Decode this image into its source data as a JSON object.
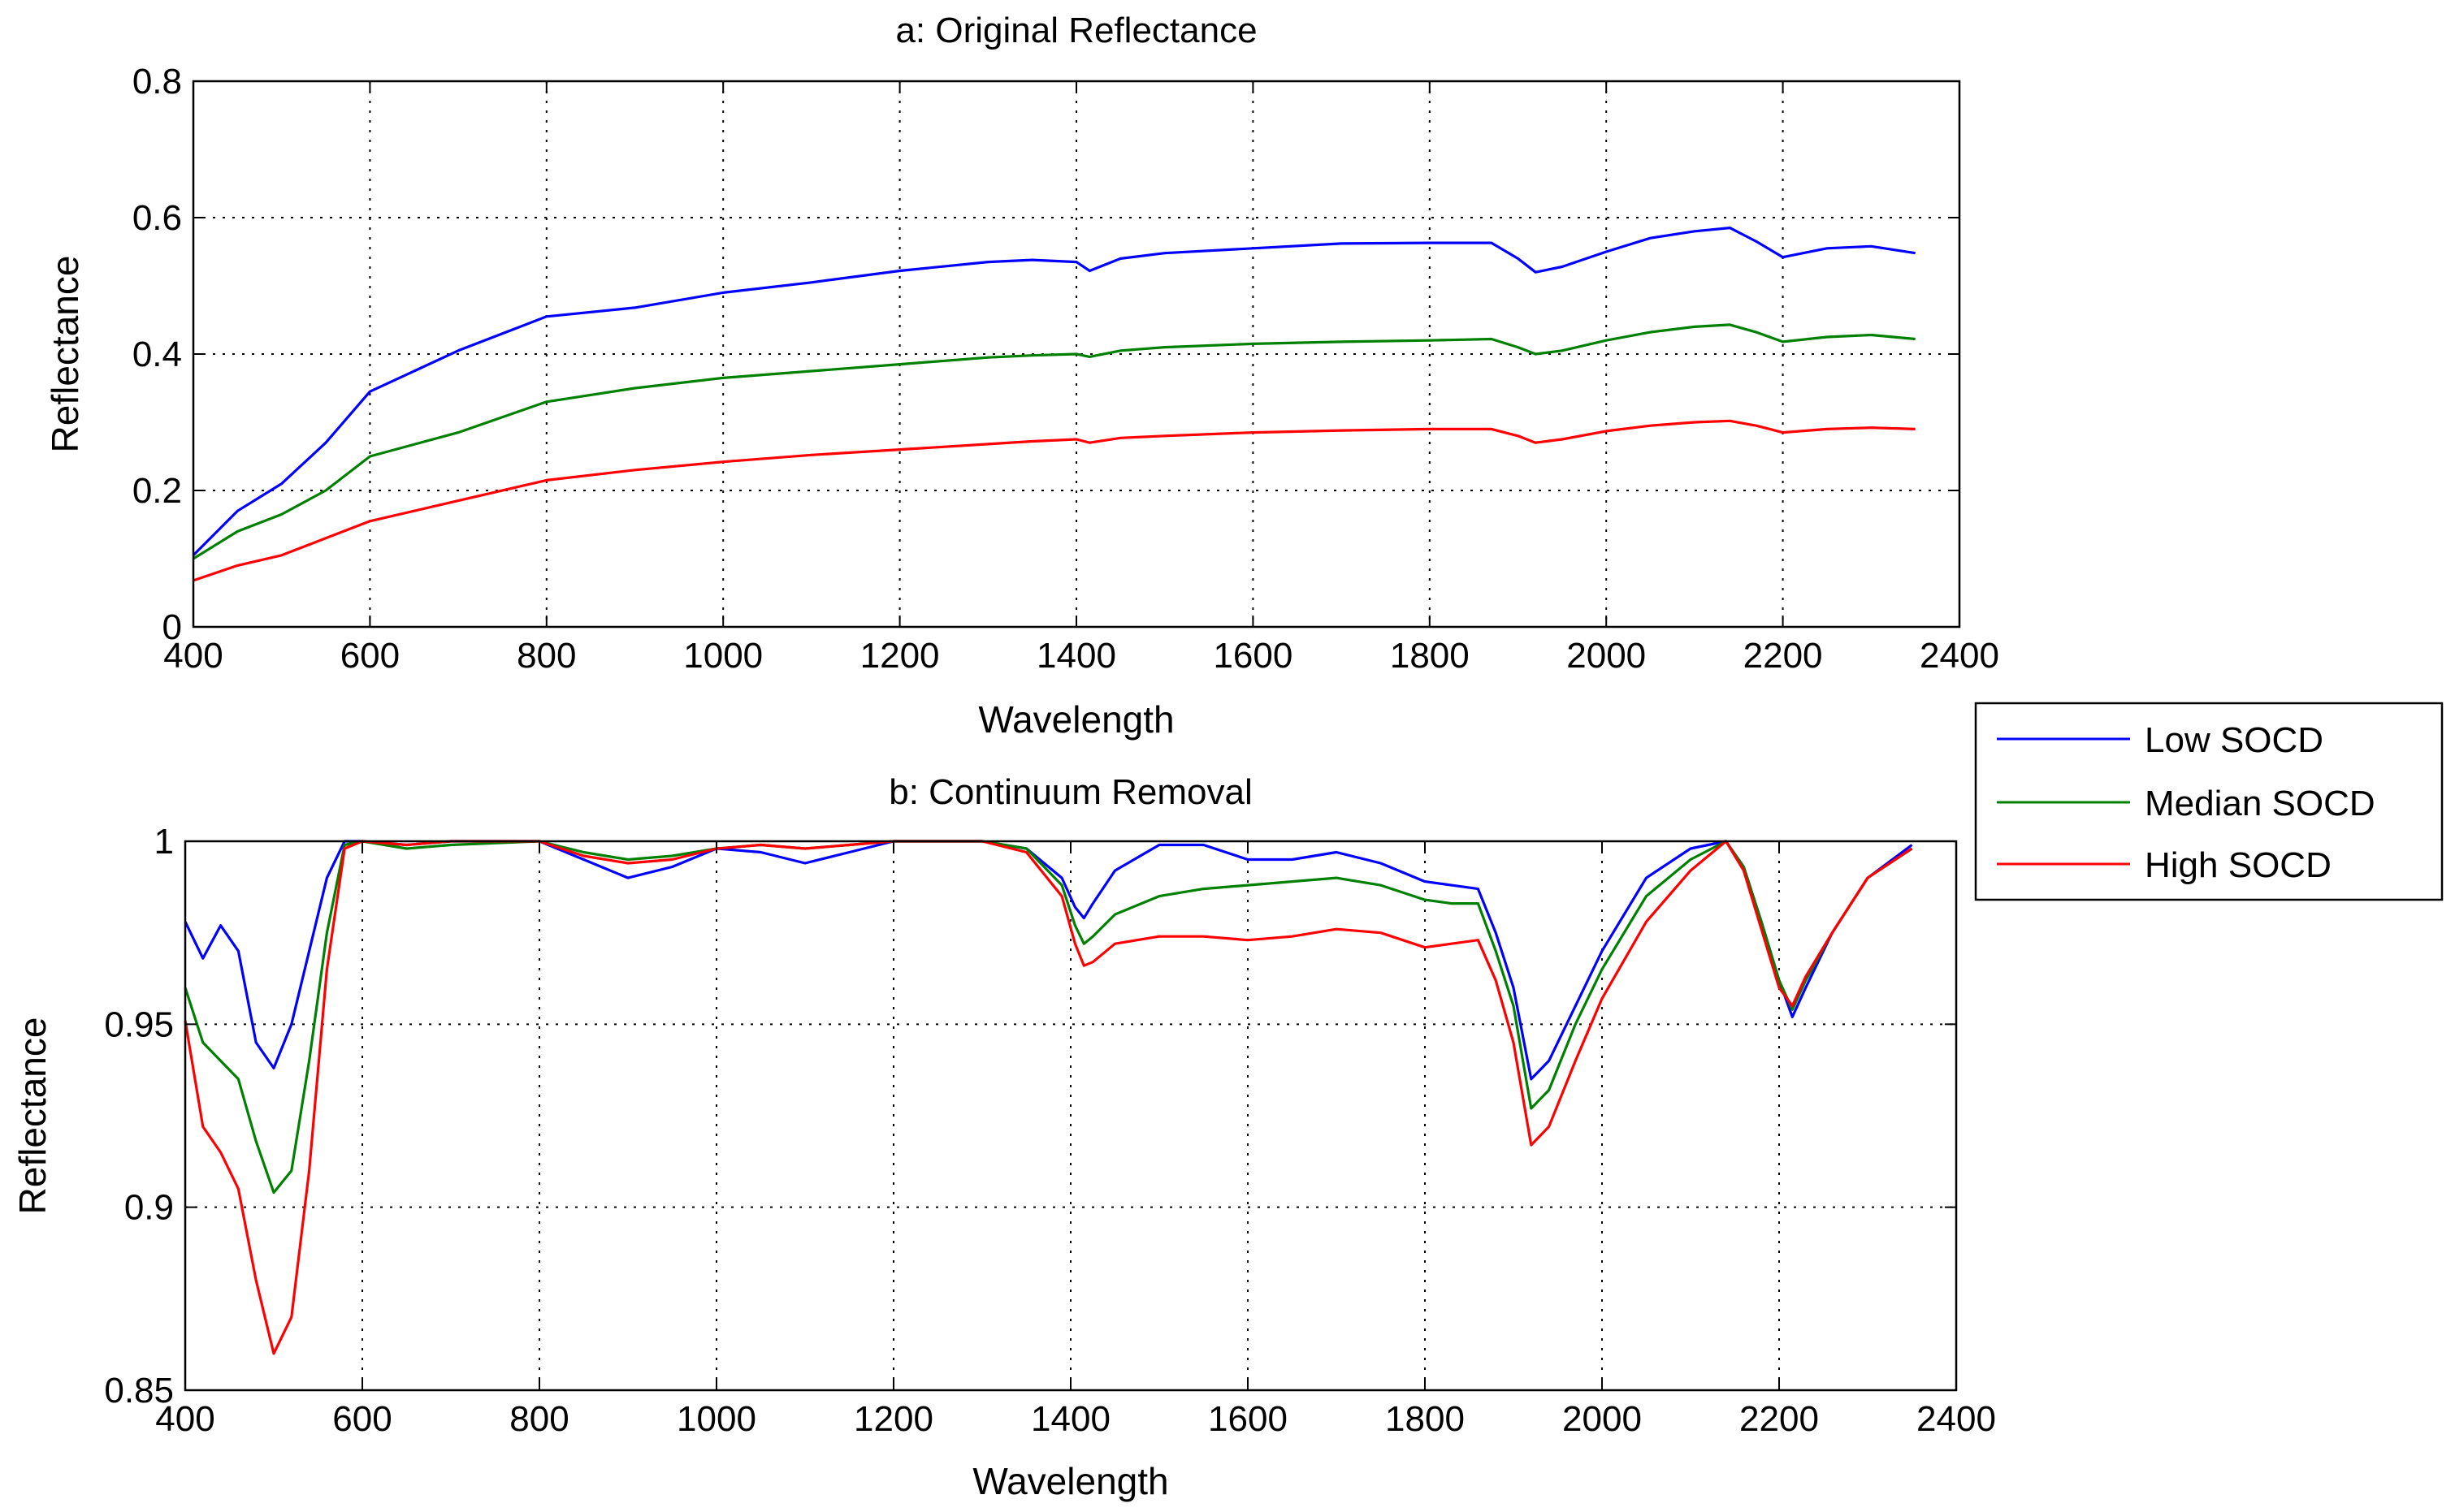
{
  "legend": {
    "entries": [
      {
        "label": "Low SOCD",
        "color": "#0000ff"
      },
      {
        "label": "Median SOCD",
        "color": "#008000"
      },
      {
        "label": "High SOCD",
        "color": "#ff0000"
      }
    ]
  },
  "chart_data": [
    {
      "type": "line",
      "title": "a:  Original Reflectance",
      "xlabel": "Wavelength",
      "ylabel": "Reflectance",
      "xlim": [
        400,
        2400
      ],
      "ylim": [
        0,
        0.8
      ],
      "xticks": [
        400,
        600,
        800,
        1000,
        1200,
        1400,
        1600,
        1800,
        2000,
        2200,
        2400
      ],
      "yticks": [
        0,
        0.2,
        0.4,
        0.6,
        0.8
      ],
      "xtick_labels": [
        "400",
        "600",
        "800",
        "1000",
        "1200",
        "1400",
        "1600",
        "1800",
        "2000",
        "2200",
        "2400"
      ],
      "ytick_labels": [
        "0",
        "0.2",
        "0.4",
        "0.6",
        "0.8"
      ],
      "grid": true,
      "x": [
        400,
        450,
        500,
        550,
        600,
        700,
        800,
        900,
        1000,
        1100,
        1200,
        1300,
        1350,
        1400,
        1415,
        1450,
        1500,
        1600,
        1700,
        1800,
        1870,
        1900,
        1920,
        1950,
        2000,
        2050,
        2100,
        2140,
        2170,
        2200,
        2250,
        2300,
        2350
      ],
      "series": [
        {
          "name": "Low SOCD",
          "color": "#0000ff",
          "values": [
            0.105,
            0.17,
            0.21,
            0.27,
            0.345,
            0.405,
            0.455,
            0.468,
            0.49,
            0.505,
            0.522,
            0.535,
            0.538,
            0.535,
            0.522,
            0.54,
            0.548,
            0.555,
            0.562,
            0.563,
            0.563,
            0.54,
            0.52,
            0.528,
            0.55,
            0.57,
            0.58,
            0.585,
            0.565,
            0.542,
            0.555,
            0.558,
            0.548
          ]
        },
        {
          "name": "Median SOCD",
          "color": "#008000",
          "values": [
            0.1,
            0.14,
            0.165,
            0.2,
            0.25,
            0.285,
            0.33,
            0.35,
            0.365,
            0.375,
            0.385,
            0.395,
            0.398,
            0.4,
            0.396,
            0.405,
            0.41,
            0.415,
            0.418,
            0.42,
            0.422,
            0.41,
            0.4,
            0.405,
            0.42,
            0.432,
            0.44,
            0.443,
            0.432,
            0.418,
            0.425,
            0.428,
            0.422
          ]
        },
        {
          "name": "High SOCD",
          "color": "#ff0000",
          "values": [
            0.068,
            0.09,
            0.105,
            0.13,
            0.155,
            0.185,
            0.215,
            0.23,
            0.242,
            0.252,
            0.26,
            0.268,
            0.272,
            0.275,
            0.27,
            0.277,
            0.28,
            0.285,
            0.288,
            0.29,
            0.29,
            0.28,
            0.27,
            0.275,
            0.287,
            0.295,
            0.3,
            0.302,
            0.295,
            0.285,
            0.29,
            0.292,
            0.29
          ]
        }
      ]
    },
    {
      "type": "line",
      "title": "b:   Continuum Removal",
      "xlabel": "Wavelength",
      "ylabel": "Reflectance",
      "xlim": [
        400,
        2400
      ],
      "ylim": [
        0.85,
        1
      ],
      "xticks": [
        400,
        600,
        800,
        1000,
        1200,
        1400,
        1600,
        1800,
        2000,
        2200,
        2400
      ],
      "yticks": [
        0.85,
        0.9,
        0.95,
        1
      ],
      "xtick_labels": [
        "400",
        "600",
        "800",
        "1000",
        "1200",
        "1400",
        "1600",
        "1800",
        "2000",
        "2200",
        "2400"
      ],
      "ytick_labels": [
        "0.85",
        "0.9",
        "0.95",
        "1"
      ],
      "grid": true,
      "x": [
        400,
        420,
        440,
        460,
        480,
        500,
        520,
        540,
        560,
        580,
        600,
        650,
        700,
        800,
        850,
        900,
        950,
        1000,
        1050,
        1100,
        1150,
        1200,
        1300,
        1350,
        1390,
        1405,
        1415,
        1425,
        1450,
        1500,
        1550,
        1600,
        1650,
        1700,
        1750,
        1800,
        1830,
        1860,
        1880,
        1900,
        1920,
        1940,
        1970,
        2000,
        2050,
        2100,
        2140,
        2160,
        2180,
        2200,
        2215,
        2230,
        2260,
        2300,
        2350
      ],
      "series": [
        {
          "name": "Low SOCD",
          "color": "#0000ff",
          "values": [
            0.978,
            0.968,
            0.977,
            0.97,
            0.945,
            0.938,
            0.95,
            0.97,
            0.99,
            1.0,
            1.0,
            0.999,
            1.0,
            1.0,
            0.995,
            0.99,
            0.993,
            0.998,
            0.997,
            0.994,
            0.997,
            1.0,
            1.0,
            0.998,
            0.99,
            0.982,
            0.979,
            0.983,
            0.992,
            0.999,
            0.999,
            0.995,
            0.995,
            0.997,
            0.994,
            0.989,
            0.988,
            0.987,
            0.975,
            0.96,
            0.935,
            0.94,
            0.955,
            0.97,
            0.99,
            0.998,
            1.0,
            0.993,
            0.978,
            0.962,
            0.952,
            0.96,
            0.975,
            0.99,
            0.999
          ]
        },
        {
          "name": "Median SOCD",
          "color": "#008000",
          "values": [
            0.96,
            0.945,
            0.94,
            0.935,
            0.918,
            0.904,
            0.91,
            0.94,
            0.975,
            0.999,
            1.0,
            0.998,
            0.999,
            1.0,
            0.997,
            0.995,
            0.996,
            0.998,
            0.999,
            0.998,
            0.999,
            1.0,
            1.0,
            0.998,
            0.988,
            0.977,
            0.972,
            0.974,
            0.98,
            0.985,
            0.987,
            0.988,
            0.989,
            0.99,
            0.988,
            0.984,
            0.983,
            0.983,
            0.97,
            0.955,
            0.927,
            0.932,
            0.95,
            0.965,
            0.985,
            0.995,
            1.0,
            0.993,
            0.978,
            0.962,
            0.954,
            0.962,
            0.975,
            0.99,
            0.998
          ]
        },
        {
          "name": "High SOCD",
          "color": "#ff0000",
          "values": [
            0.951,
            0.922,
            0.915,
            0.905,
            0.88,
            0.86,
            0.87,
            0.91,
            0.965,
            0.998,
            1.0,
            0.999,
            1.0,
            1.0,
            0.996,
            0.994,
            0.995,
            0.998,
            0.999,
            0.998,
            0.999,
            1.0,
            1.0,
            0.997,
            0.985,
            0.972,
            0.966,
            0.967,
            0.972,
            0.974,
            0.974,
            0.973,
            0.974,
            0.976,
            0.975,
            0.971,
            0.972,
            0.973,
            0.962,
            0.945,
            0.917,
            0.922,
            0.94,
            0.957,
            0.978,
            0.992,
            1.0,
            0.992,
            0.976,
            0.96,
            0.955,
            0.963,
            0.975,
            0.99,
            0.998
          ]
        }
      ]
    }
  ]
}
